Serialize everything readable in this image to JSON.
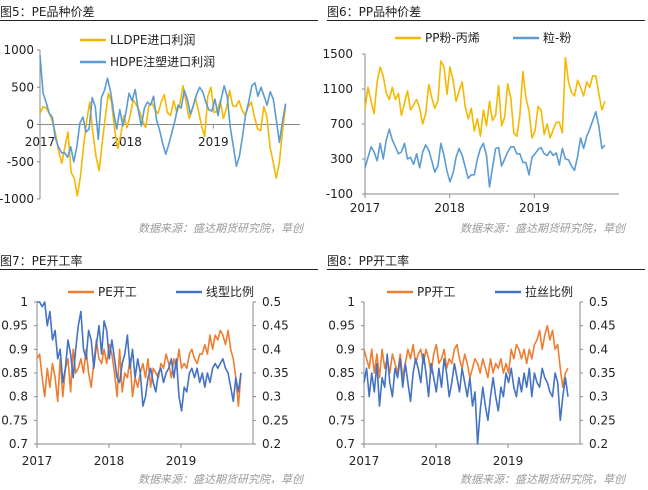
{
  "source_text": "数据来源：盛达期货研究院，草创",
  "chart_data": [
    {
      "type": "line",
      "title": "图5：PE品种价差",
      "years": [
        "2017",
        "2018",
        "2019"
      ],
      "x_range": [
        "2017-01",
        "2019-12"
      ],
      "ylim": [
        -1000,
        1000
      ],
      "yticks": [
        "1000",
        "500",
        "0",
        "-500",
        "-1000"
      ],
      "legend": "top-left",
      "series": [
        {
          "name": "LLDPE进口利润",
          "color": "#F5B800",
          "values": [
            150,
            240,
            220,
            150,
            40,
            -120,
            -360,
            -520,
            -300,
            -100,
            -640,
            -720,
            -960,
            -700,
            -300,
            40,
            300,
            -100,
            -420,
            -620,
            -250,
            100,
            420,
            300,
            -60,
            -320,
            -140,
            120,
            -40,
            120,
            330,
            260,
            180,
            50,
            -40,
            250,
            290,
            200,
            150,
            300,
            400,
            160,
            120,
            320,
            160,
            280,
            520,
            300,
            80,
            200,
            360,
            180,
            -20,
            -160,
            380,
            500,
            160,
            180,
            320,
            80,
            220,
            460,
            250,
            240,
            320,
            200,
            120,
            240,
            300,
            100,
            -60,
            -80,
            240,
            100,
            -300,
            -500,
            -720,
            -520,
            -100,
            250
          ]
        },
        {
          "name": "HDPE注塑进口利润",
          "color": "#5B9BD5",
          "values": [
            930,
            420,
            300,
            150,
            100,
            -180,
            -300,
            -380,
            -380,
            -440,
            -300,
            -500,
            -300,
            20,
            100,
            -100,
            -60,
            360,
            240,
            -200,
            360,
            460,
            620,
            440,
            160,
            -60,
            200,
            -20,
            160,
            420,
            320,
            470,
            200,
            -20,
            220,
            300,
            260,
            380,
            60,
            -80,
            -260,
            -400,
            -260,
            -100,
            60,
            260,
            220,
            460,
            340,
            140,
            260,
            400,
            500,
            440,
            300,
            200,
            180,
            340,
            120,
            340,
            520,
            380,
            -40,
            -300,
            -560,
            -420,
            -150,
            140,
            300,
            520,
            560,
            380,
            500,
            380,
            260,
            440,
            340,
            60,
            -240,
            40,
            280
          ]
        }
      ]
    },
    {
      "type": "line",
      "title": "图6：PP品种价差",
      "years": [
        "2017",
        "2018",
        "2019"
      ],
      "x_range": [
        "2017-01",
        "2019-12"
      ],
      "ylim": [
        -100,
        1500
      ],
      "yticks": [
        "1500",
        "1100",
        "700",
        "300",
        "-100"
      ],
      "legend": "top-center",
      "series": [
        {
          "name": "PP粉-丙烯",
          "color": "#F5B800",
          "values": [
            880,
            1120,
            960,
            820,
            1180,
            1350,
            1250,
            1050,
            980,
            1120,
            980,
            1050,
            800,
            940,
            1080,
            860,
            920,
            980,
            880,
            700,
            820,
            1150,
            1000,
            880,
            960,
            1420,
            1350,
            1040,
            1350,
            1200,
            960,
            1080,
            1180,
            900,
            760,
            880,
            620,
            760,
            560,
            860,
            680,
            960,
            740,
            800,
            1140,
            680,
            780,
            1160,
            1000,
            600,
            560,
            800,
            1300,
            1000,
            850,
            540,
            620,
            900,
            860,
            580,
            700,
            540,
            640,
            720,
            720,
            600,
            1460,
            1180,
            1060,
            1020,
            1200,
            1120,
            1020,
            1180,
            1120,
            1250,
            1250,
            1050,
            860,
            960
          ]
        },
        {
          "name": "粒-粉",
          "color": "#5B9BD5",
          "values": [
            200,
            320,
            440,
            380,
            280,
            480,
            300,
            520,
            640,
            520,
            440,
            360,
            380,
            480,
            300,
            320,
            240,
            360,
            200,
            380,
            460,
            400,
            280,
            150,
            220,
            480,
            340,
            160,
            40,
            140,
            320,
            420,
            340,
            210,
            80,
            120,
            120,
            300,
            420,
            480,
            340,
            -20,
            200,
            420,
            430,
            220,
            300,
            380,
            440,
            440,
            360,
            360,
            260,
            260,
            120,
            320,
            360,
            410,
            430,
            360,
            340,
            390,
            340,
            370,
            230,
            420,
            300,
            290,
            220,
            170,
            330,
            540,
            420,
            560,
            640,
            740,
            840,
            680,
            420,
            460
          ]
        }
      ]
    },
    {
      "type": "line",
      "title": "图7：PE开工率",
      "years": [
        "2017",
        "2018",
        "2019"
      ],
      "x_range": [
        "2017-01",
        "2019-12"
      ],
      "ylim": [
        0.7,
        1
      ],
      "yticks": [
        "1",
        "0.95",
        "0.9",
        "0.85",
        "0.8",
        "0.75",
        "0.7"
      ],
      "y2lim": [
        0.2,
        0.5
      ],
      "y2ticks": [
        "0.5",
        "0.45",
        "0.4",
        "0.35",
        "0.3",
        "0.25",
        "0.2"
      ],
      "legend": "top-center",
      "series": [
        {
          "name": "PE开工",
          "color": "#ED7D31",
          "axis": "left",
          "values": [
            0.88,
            0.89,
            0.84,
            0.8,
            0.86,
            0.82,
            0.87,
            0.84,
            0.79,
            0.88,
            0.8,
            0.86,
            0.88,
            0.81,
            0.9,
            0.85,
            0.86,
            0.88,
            0.85,
            0.9,
            0.85,
            0.82,
            0.87,
            0.92,
            0.88,
            0.87,
            0.9,
            0.87,
            0.91,
            0.89,
            0.85,
            0.8,
            0.9,
            0.81,
            0.85,
            0.84,
            0.88,
            0.8,
            0.84,
            0.82,
            0.85,
            0.87,
            0.84,
            0.88,
            0.82,
            0.86,
            0.85,
            0.84,
            0.87,
            0.86,
            0.89,
            0.87,
            0.84,
            0.88,
            0.86,
            0.9,
            0.86,
            0.87,
            0.86,
            0.89,
            0.9,
            0.88,
            0.87,
            0.89,
            0.89,
            0.91,
            0.89,
            0.93,
            0.9,
            0.93,
            0.92,
            0.94,
            0.93,
            0.91,
            0.94,
            0.9,
            0.88,
            0.84,
            0.78,
            0.85
          ]
        },
        {
          "name": "线型比例",
          "color": "#4472C4",
          "axis": "right",
          "values": [
            0.5,
            0.5,
            0.49,
            0.5,
            0.45,
            0.48,
            0.42,
            0.44,
            0.38,
            0.4,
            0.33,
            0.36,
            0.42,
            0.39,
            0.34,
            0.4,
            0.45,
            0.48,
            0.4,
            0.38,
            0.44,
            0.42,
            0.36,
            0.41,
            0.45,
            0.39,
            0.46,
            0.44,
            0.38,
            0.42,
            0.38,
            0.34,
            0.33,
            0.37,
            0.39,
            0.43,
            0.36,
            0.4,
            0.34,
            0.38,
            0.35,
            0.28,
            0.3,
            0.34,
            0.36,
            0.33,
            0.31,
            0.35,
            0.36,
            0.33,
            0.35,
            0.36,
            0.38,
            0.34,
            0.38,
            0.3,
            0.27,
            0.32,
            0.31,
            0.35,
            0.36,
            0.34,
            0.36,
            0.33,
            0.35,
            0.32,
            0.35,
            0.33,
            0.36,
            0.37,
            0.36,
            0.37,
            0.38,
            0.36,
            0.35,
            0.32,
            0.29,
            0.34,
            0.31,
            0.35
          ]
        }
      ]
    },
    {
      "type": "line",
      "title": "图8：PP开工率",
      "years": [
        "2017",
        "2018",
        "2019"
      ],
      "x_range": [
        "2017-01",
        "2019-12"
      ],
      "ylim": [
        0.7,
        1
      ],
      "yticks": [
        "1",
        "0.95",
        "0.9",
        "0.85",
        "0.8",
        "0.75",
        "0.7"
      ],
      "y2lim": [
        0.2,
        0.5
      ],
      "y2ticks": [
        "0.5",
        "0.45",
        "0.4",
        "0.35",
        "0.3",
        "0.25",
        "0.2"
      ],
      "legend": "top-center",
      "series": [
        {
          "name": "PP开工",
          "color": "#ED7D31",
          "axis": "left",
          "values": [
            0.9,
            0.88,
            0.86,
            0.9,
            0.85,
            0.89,
            0.84,
            0.9,
            0.86,
            0.88,
            0.85,
            0.89,
            0.87,
            0.85,
            0.89,
            0.84,
            0.87,
            0.9,
            0.88,
            0.91,
            0.87,
            0.89,
            0.9,
            0.87,
            0.9,
            0.88,
            0.85,
            0.89,
            0.91,
            0.87,
            0.88,
            0.9,
            0.86,
            0.88,
            0.87,
            0.9,
            0.91,
            0.88,
            0.86,
            0.89,
            0.87,
            0.84,
            0.86,
            0.88,
            0.87,
            0.85,
            0.88,
            0.86,
            0.84,
            0.88,
            0.85,
            0.87,
            0.86,
            0.88,
            0.85,
            0.87,
            0.85,
            0.9,
            0.88,
            0.91,
            0.9,
            0.88,
            0.9,
            0.87,
            0.9,
            0.88,
            0.91,
            0.92,
            0.94,
            0.9,
            0.93,
            0.95,
            0.92,
            0.94,
            0.9,
            0.91,
            0.86,
            0.82,
            0.85,
            0.86
          ]
        },
        {
          "name": "拉丝比例",
          "color": "#4472C4",
          "axis": "right",
          "values": [
            0.33,
            0.36,
            0.3,
            0.35,
            0.31,
            0.37,
            0.28,
            0.34,
            0.32,
            0.39,
            0.33,
            0.3,
            0.36,
            0.34,
            0.38,
            0.32,
            0.37,
            0.33,
            0.29,
            0.35,
            0.38,
            0.36,
            0.33,
            0.39,
            0.35,
            0.3,
            0.37,
            0.34,
            0.31,
            0.36,
            0.32,
            0.38,
            0.35,
            0.3,
            0.33,
            0.37,
            0.34,
            0.31,
            0.36,
            0.33,
            0.3,
            0.34,
            0.28,
            0.31,
            0.2,
            0.27,
            0.32,
            0.28,
            0.25,
            0.3,
            0.34,
            0.3,
            0.27,
            0.32,
            0.3,
            0.35,
            0.33,
            0.36,
            0.32,
            0.3,
            0.34,
            0.31,
            0.35,
            0.32,
            0.36,
            0.3,
            0.35,
            0.33,
            0.32,
            0.36,
            0.34,
            0.33,
            0.31,
            0.3,
            0.35,
            0.33,
            0.25,
            0.3,
            0.34,
            0.3
          ]
        }
      ]
    }
  ]
}
